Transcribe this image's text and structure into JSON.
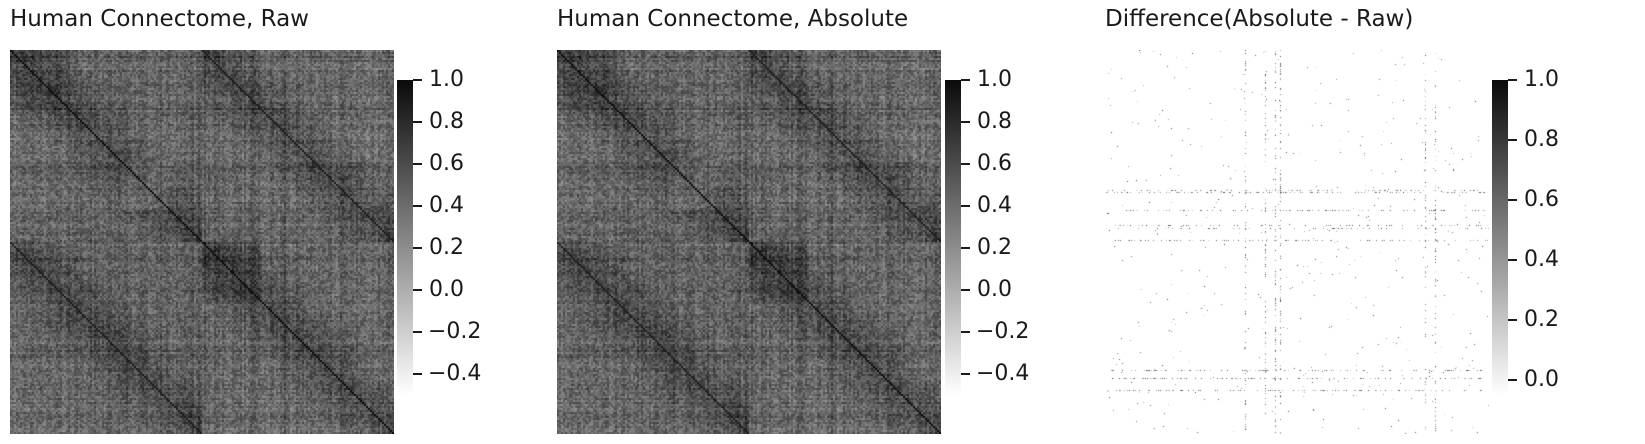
{
  "panels": [
    {
      "id": "raw",
      "title": "Human Connectome, Raw",
      "pattern": "connectome",
      "colorbar": {
        "min": -0.5,
        "max": 1.0,
        "ticks": [
          1.0,
          0.8,
          0.6,
          0.4,
          0.2,
          0.0,
          -0.2,
          -0.4
        ],
        "tick_labels": [
          "1.0",
          "0.8",
          "0.6",
          "0.4",
          "0.2",
          "0.0",
          "−0.2",
          "−0.4"
        ]
      }
    },
    {
      "id": "absolute",
      "title": "Human Connectome, Absolute",
      "pattern": "connectome",
      "colorbar": {
        "min": -0.5,
        "max": 1.0,
        "ticks": [
          1.0,
          0.8,
          0.6,
          0.4,
          0.2,
          0.0,
          -0.2,
          -0.4
        ],
        "tick_labels": [
          "1.0",
          "0.8",
          "0.6",
          "0.4",
          "0.2",
          "0.0",
          "−0.2",
          "−0.4"
        ]
      }
    },
    {
      "id": "difference",
      "title": "Difference(Absolute - Raw)",
      "pattern": "sparse",
      "colorbar": {
        "min": -0.05,
        "max": 1.0,
        "ticks": [
          1.0,
          0.8,
          0.6,
          0.4,
          0.2,
          0.0
        ],
        "tick_labels": [
          "1.0",
          "0.8",
          "0.6",
          "0.4",
          "0.2",
          "0.0"
        ]
      }
    }
  ],
  "chart_data": [
    {
      "type": "heatmap",
      "title": "Human Connectome, Raw",
      "colormap": "grey-white-to-black",
      "vmin": -0.5,
      "vmax": 1.0,
      "diagonal": 1.0
    },
    {
      "type": "heatmap",
      "title": "Human Connectome, Absolute",
      "colormap": "grey-white-to-black",
      "vmin": -0.5,
      "vmax": 1.0,
      "diagonal": 1.0
    },
    {
      "type": "heatmap",
      "title": "Difference(Absolute - Raw)",
      "colormap": "grey-white-to-black",
      "vmin": 0.0,
      "vmax": 1.0
    }
  ]
}
